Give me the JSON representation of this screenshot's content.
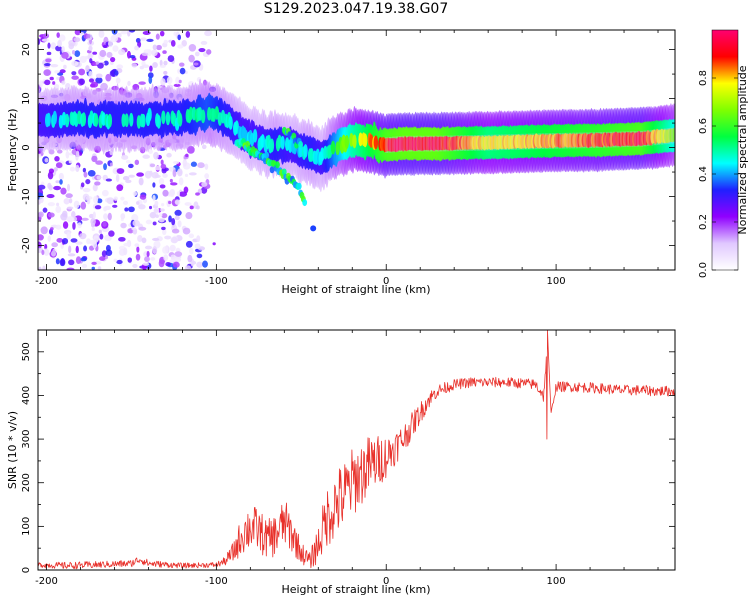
{
  "title": "S129.2023.047.19.38.G07",
  "chart_data": [
    {
      "type": "heatmap",
      "title": "S129.2023.047.19.38.G07",
      "xlabel": "Height of straight line (km)",
      "ylabel": "Frequency (Hz)",
      "xlim": [
        -205,
        170
      ],
      "ylim": [
        -25,
        24
      ],
      "xticks": [
        -200,
        -100,
        0,
        100
      ],
      "yticks": [
        -20,
        -10,
        0,
        10,
        20
      ],
      "colorbar": {
        "label": "Normalized spectral amplitude",
        "range": [
          0,
          1
        ],
        "ticks": [
          0.0,
          0.2,
          0.4,
          0.6,
          0.8
        ],
        "colors": [
          "#ffffff",
          "#e0c8ff",
          "#9000ff",
          "#2020ff",
          "#00ffff",
          "#00ff40",
          "#80ff00",
          "#ffff00",
          "#ff0000",
          "#ff0070"
        ]
      },
      "ridge": {
        "x": [
          -205,
          -180,
          -150,
          -120,
          -105,
          -95,
          -85,
          -75,
          -65,
          -55,
          -45,
          -38,
          -30,
          -20,
          -10,
          0,
          10,
          30,
          60,
          90,
          120,
          150,
          170
        ],
        "freq": [
          5.5,
          5.8,
          5.6,
          6.0,
          7.2,
          6.0,
          3.0,
          1.0,
          0.5,
          0.2,
          -1.5,
          -2.0,
          0.0,
          1.5,
          1.5,
          0.5,
          0.8,
          0.8,
          1.0,
          1.3,
          1.5,
          1.8,
          2.5
        ],
        "amplitude": [
          0.45,
          0.5,
          0.5,
          0.5,
          0.55,
          0.5,
          0.45,
          0.45,
          0.5,
          0.45,
          0.5,
          0.45,
          0.6,
          0.75,
          0.85,
          0.95,
          0.98,
          0.98,
          0.8,
          0.85,
          0.9,
          0.95,
          0.7
        ]
      },
      "branches": [
        {
          "x": [
            -88,
            -65,
            -52,
            -48
          ],
          "freq": [
            1.5,
            -4.0,
            -8.0,
            -11.0
          ]
        },
        {
          "x": [
            -60,
            -55,
            -50
          ],
          "freq": [
            3.5,
            2.0,
            0.5
          ]
        }
      ],
      "isolated_points": [
        {
          "x": -43,
          "freq": -16.5
        }
      ],
      "noise_region": {
        "x": [
          -205,
          -100
        ],
        "freq": [
          -25,
          24
        ]
      }
    },
    {
      "type": "line",
      "xlabel": "Height of straight line (km)",
      "ylabel": "SNR (10 * v/v)",
      "xlim": [
        -205,
        170
      ],
      "ylim": [
        0,
        550
      ],
      "xticks": [
        -200,
        -100,
        0,
        100
      ],
      "yticks": [
        0,
        100,
        200,
        300,
        400,
        500
      ],
      "color": "#e8302a",
      "series": [
        {
          "name": "SNR",
          "x": [
            -205,
            -190,
            -170,
            -150,
            -145,
            -140,
            -120,
            -100,
            -95,
            -90,
            -85,
            -80,
            -75,
            -70,
            -65,
            -60,
            -55,
            -50,
            -45,
            -40,
            -35,
            -30,
            -25,
            -20,
            -15,
            -10,
            -5,
            0,
            5,
            10,
            15,
            20,
            25,
            30,
            40,
            50,
            60,
            70,
            80,
            88,
            93,
            95,
            97,
            100,
            110,
            120,
            130,
            140,
            150,
            160,
            170
          ],
          "y": [
            12,
            10,
            12,
            15,
            25,
            15,
            10,
            12,
            20,
            40,
            80,
            100,
            90,
            70,
            80,
            110,
            80,
            40,
            20,
            60,
            120,
            150,
            170,
            200,
            220,
            240,
            250,
            260,
            280,
            300,
            330,
            360,
            390,
            410,
            425,
            430,
            430,
            430,
            428,
            425,
            400,
            540,
            360,
            420,
            420,
            418,
            415,
            412,
            412,
            410,
            410
          ],
          "noise": [
            6,
            8,
            8,
            8,
            10,
            8,
            6,
            6,
            10,
            25,
            45,
            55,
            50,
            45,
            50,
            55,
            45,
            25,
            20,
            45,
            70,
            80,
            80,
            80,
            75,
            70,
            60,
            50,
            40,
            35,
            30,
            25,
            20,
            15,
            12,
            12,
            12,
            12,
            12,
            12,
            20,
            0,
            0,
            12,
            12,
            12,
            12,
            12,
            12,
            12,
            12
          ]
        }
      ],
      "spikes": [
        {
          "x": 95,
          "y": 550
        },
        {
          "x": 94.5,
          "y": 300
        }
      ]
    }
  ]
}
